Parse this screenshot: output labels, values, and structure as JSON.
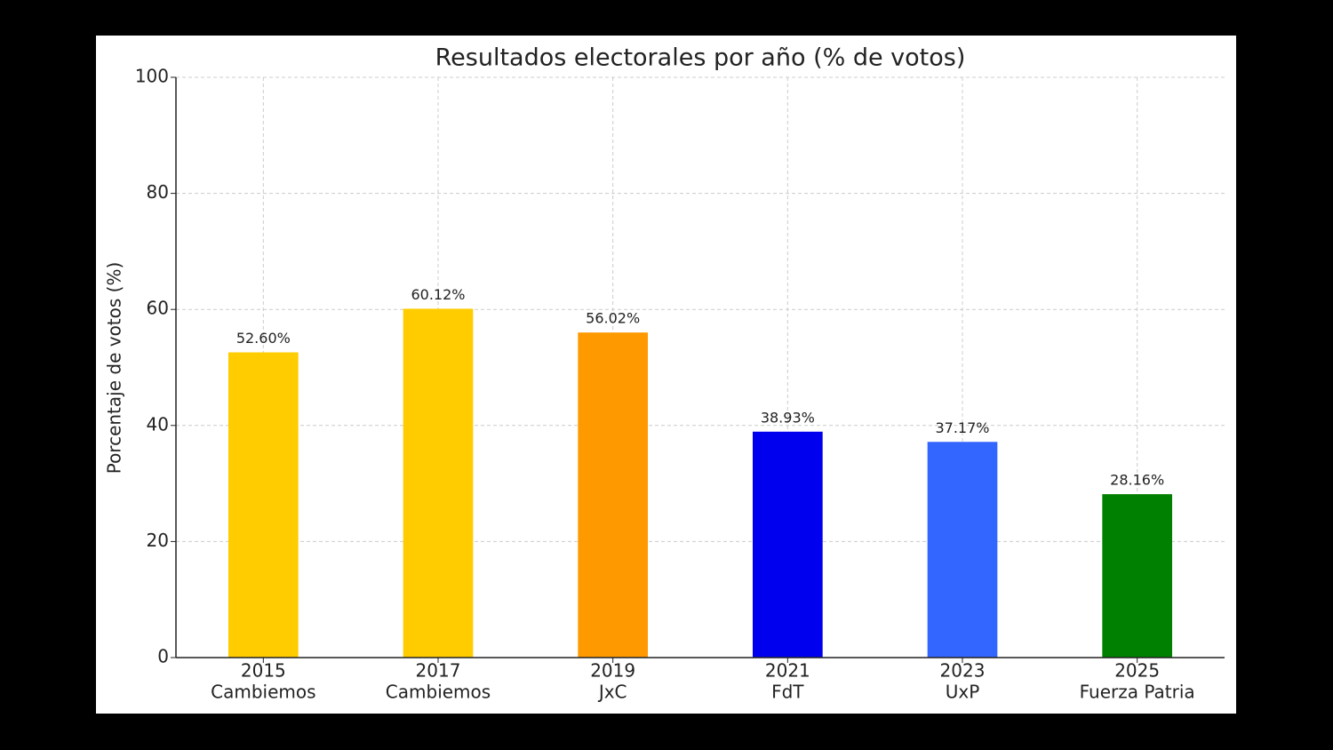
{
  "chart_data": {
    "type": "bar",
    "title": "Resultados electorales por año (% de votos)",
    "ylabel": "Porcentaje de votos (%)",
    "categories": [
      [
        "2015",
        "Cambiemos"
      ],
      [
        "2017",
        "Cambiemos"
      ],
      [
        "2019",
        "JxC"
      ],
      [
        "2021",
        "FdT"
      ],
      [
        "2023",
        "UxP"
      ],
      [
        "2025",
        "Fuerza Patria"
      ]
    ],
    "values": [
      52.6,
      60.12,
      56.02,
      38.93,
      37.17,
      28.16
    ],
    "value_labels": [
      "52.60%",
      "60.12%",
      "56.02%",
      "38.93%",
      "37.17%",
      "28.16%"
    ],
    "colors": [
      "#ffcc00",
      "#ffcc00",
      "#ff9900",
      "#0000ee",
      "#3366ff",
      "#008000"
    ],
    "ylim": [
      0,
      100
    ],
    "yticks": [
      0,
      20,
      40,
      60,
      80,
      100
    ],
    "grid": true
  }
}
